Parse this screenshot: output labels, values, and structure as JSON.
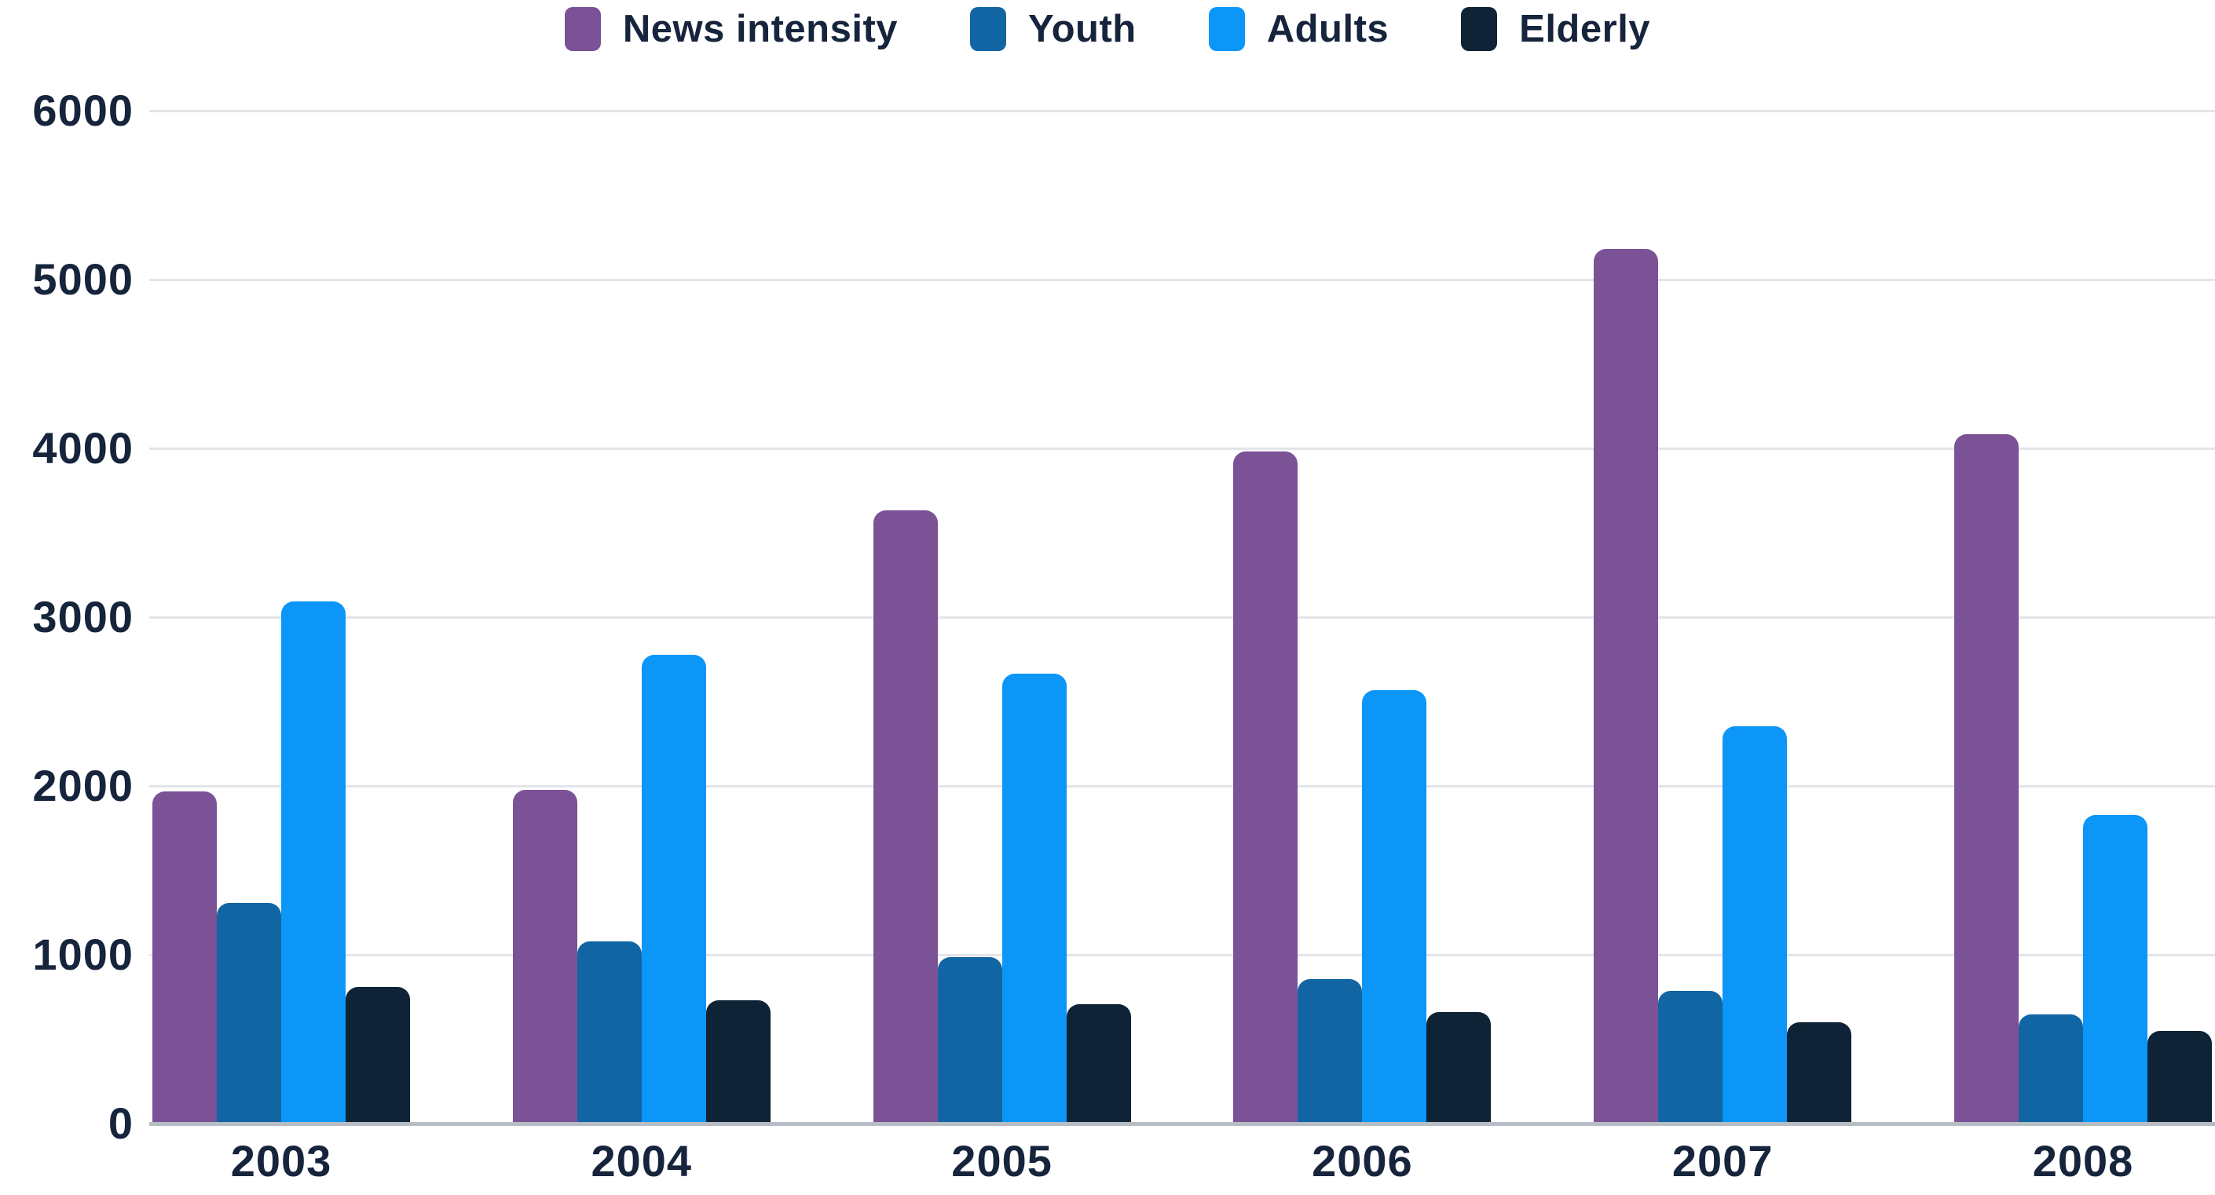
{
  "chart_data": {
    "type": "bar",
    "title": "",
    "xlabel": "",
    "ylabel": "",
    "categories": [
      "2003",
      "2004",
      "2005",
      "2006",
      "2007",
      "2008"
    ],
    "series": [
      {
        "name": "News intensity",
        "color": "#7B5296",
        "values": [
          1960,
          1970,
          3630,
          3980,
          5180,
          4080
        ]
      },
      {
        "name": "Youth",
        "color": "#1165A3",
        "values": [
          1300,
          1070,
          980,
          850,
          780,
          640
        ]
      },
      {
        "name": "Adults",
        "color": "#0B96F8",
        "values": [
          3090,
          2770,
          2660,
          2560,
          2350,
          1820
        ]
      },
      {
        "name": "Elderly",
        "color": "#0E2335",
        "values": [
          800,
          720,
          700,
          650,
          590,
          540
        ]
      }
    ],
    "ylim": [
      0,
      6000
    ],
    "yticks": [
      0,
      1000,
      2000,
      3000,
      4000,
      5000,
      6000
    ],
    "grid": true,
    "legend_position": "top"
  },
  "style": {
    "background": "#FFFFFF",
    "text_color": "#16243C",
    "gridline_color": "#E2E5E9",
    "axis_line_color": "#B7BDC4"
  }
}
